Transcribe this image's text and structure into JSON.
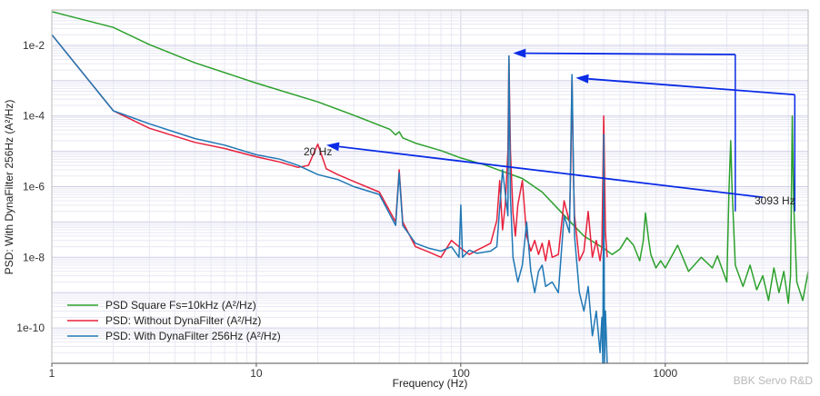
{
  "chart_data": {
    "type": "line",
    "title": "",
    "xlabel": "Frequency (Hz)",
    "ylabel": "PSD: With DynaFilter 256Hz  (A²/Hz)",
    "x_scale": "log",
    "y_scale": "log",
    "xlim": [
      1,
      5000
    ],
    "ylim": [
      1e-11,
      0.1
    ],
    "x_ticks": [
      1,
      10,
      100,
      1000
    ],
    "x_tick_labels": [
      "1",
      "10",
      "100",
      "1000"
    ],
    "y_ticks": [
      1e-10,
      1e-08,
      1e-06,
      0.0001,
      0.01
    ],
    "y_tick_labels": [
      "1e-10",
      "1e-8",
      "1e-6",
      "1e-4",
      "1e-2"
    ],
    "grid": true,
    "legend_position": "bottom-left",
    "series": [
      {
        "name": "PSD Square Fs=10kHz (A²/Hz)",
        "color": "#2ca02c",
        "x": [
          1,
          2,
          3,
          5,
          10,
          20,
          30,
          45,
          48,
          50,
          52,
          60,
          80,
          100,
          130,
          160,
          200,
          250,
          300,
          350,
          400,
          500,
          550,
          600,
          650,
          700,
          750,
          780,
          800,
          830,
          850,
          900,
          950,
          1000,
          1150,
          1300,
          1500,
          1700,
          1800,
          2000,
          2050,
          2090,
          2120,
          2200,
          2400,
          2600,
          2800,
          3000,
          3200,
          3400,
          3600,
          3800,
          4000,
          4100,
          4180,
          4250,
          4400,
          4700,
          5000
        ],
        "y": [
          0.09,
          0.032,
          0.0105,
          0.0032,
          0.00085,
          0.00025,
          0.000105,
          4.2e-05,
          2.9e-05,
          3.6e-05,
          2.4e-05,
          1.7e-05,
          1.05e-05,
          6.5e-06,
          4.2e-06,
          2.7e-06,
          1.7e-06,
          7e-07,
          2.3e-07,
          9e-08,
          4e-08,
          1.8e-08,
          1.2e-08,
          1.7e-08,
          3.6e-08,
          2.2e-08,
          8e-09,
          2.8e-08,
          1.8e-07,
          3e-08,
          1.2e-08,
          5e-09,
          8e-09,
          5e-09,
          2.2e-08,
          4e-09,
          1e-08,
          5e-09,
          1.1e-08,
          2e-09,
          8e-07,
          2e-05,
          1e-06,
          6e-09,
          1.5e-09,
          6e-09,
          1.2e-09,
          3e-09,
          6e-10,
          5e-09,
          1e-09,
          4e-09,
          5e-10,
          3e-09,
          0.0001,
          3e-07,
          2e-09,
          6e-10,
          4e-09
        ]
      },
      {
        "name": "PSD: Without DynaFilter (A²/Hz)",
        "color": "#e8213c",
        "x": [
          1,
          2,
          3,
          5,
          7,
          10,
          13,
          16,
          18,
          20,
          22,
          25,
          30,
          40,
          48,
          50,
          52,
          60,
          70,
          80,
          90,
          100,
          110,
          120,
          130,
          140,
          150,
          155,
          160,
          165,
          170,
          172,
          175,
          180,
          185,
          190,
          200,
          210,
          220,
          230,
          240,
          250,
          260,
          270,
          280,
          300,
          320,
          340,
          345,
          350,
          355,
          360,
          380,
          400,
          420,
          440,
          460,
          480,
          490,
          500,
          510,
          520
        ],
        "y": [
          0.02,
          0.00014,
          4.5e-05,
          1.8e-05,
          1.2e-05,
          7e-06,
          5e-06,
          3.5e-06,
          4e-06,
          1.6e-05,
          3.2e-06,
          2.2e-06,
          1.4e-06,
          7e-07,
          1e-07,
          3e-06,
          1e-07,
          2e-08,
          1.4e-08,
          1e-08,
          3e-08,
          1.8e-08,
          1.2e-08,
          1.6e-08,
          2e-08,
          2.5e-08,
          1.1e-07,
          1.5e-06,
          6e-08,
          3e-07,
          1e-05,
          0.005,
          1e-05,
          1.8e-07,
          4e-08,
          3e-07,
          1.5e-06,
          4e-08,
          1.5e-08,
          3e-08,
          1.2e-08,
          2.5e-08,
          8e-09,
          3e-08,
          1e-08,
          1.2e-08,
          4e-07,
          1e-07,
          3e-06,
          0.0013,
          3e-06,
          1.5e-07,
          8e-09,
          1.5e-08,
          2e-07,
          1e-08,
          3e-08,
          8e-09,
          2e-08,
          0.0001,
          5e-08,
          1e-08
        ]
      },
      {
        "name": "PSD: With DynaFilter 256Hz  (A²/Hz)",
        "color": "#1f77b4",
        "x": [
          1,
          2,
          3,
          5,
          7,
          10,
          13,
          16,
          20,
          25,
          30,
          40,
          48,
          50,
          52,
          60,
          70,
          80,
          90,
          98,
          100,
          102,
          110,
          120,
          130,
          140,
          150,
          160,
          170,
          172,
          175,
          180,
          190,
          200,
          210,
          220,
          230,
          240,
          250,
          260,
          280,
          300,
          320,
          340,
          350,
          360,
          380,
          400,
          420,
          440,
          460,
          480,
          490,
          495,
          500,
          505,
          510,
          520
        ],
        "y": [
          0.02,
          0.00014,
          6e-05,
          2.3e-05,
          1.5e-05,
          8e-06,
          6e-06,
          4e-06,
          2.2e-06,
          1.6e-06,
          1e-06,
          6e-07,
          8e-08,
          2.5e-06,
          8e-08,
          2.5e-08,
          1.8e-08,
          1.5e-08,
          2e-08,
          1e-08,
          3e-07,
          1e-08,
          1.6e-08,
          1.3e-08,
          1.4e-08,
          1.5e-08,
          2e-08,
          3e-06,
          1.5e-07,
          0.005,
          5e-07,
          1e-08,
          2e-09,
          6e-09,
          1e-07,
          4e-09,
          1e-09,
          4e-09,
          6e-09,
          1.5e-09,
          2e-09,
          1e-09,
          1.5e-07,
          5e-08,
          0.0015,
          4e-08,
          1e-09,
          3e-10,
          1.5e-09,
          6e-11,
          3e-10,
          2e-11,
          2e-10,
          1e-11,
          3e-05,
          1e-11,
          3e-10,
          1e-11
        ]
      }
    ],
    "annotations": [
      {
        "text": "20 Hz"
      },
      {
        "text": "3093 Hz"
      }
    ],
    "watermark": "BBK Servo R&D",
    "arrow_color": "#0a2be6",
    "arrows": [
      {
        "from": [
          2200,
          0.0055
        ],
        "to": [
          180,
          0.006
        ],
        "bend": [
          2200,
          2e-07
        ]
      },
      {
        "from": [
          4300,
          0.0004
        ],
        "to": [
          365,
          0.0012
        ],
        "bend": [
          4300,
          2e-07
        ]
      },
      {
        "from": [
          3000,
          5e-07
        ],
        "to": [
          22,
          1.5e-05
        ],
        "bend": null
      }
    ]
  }
}
